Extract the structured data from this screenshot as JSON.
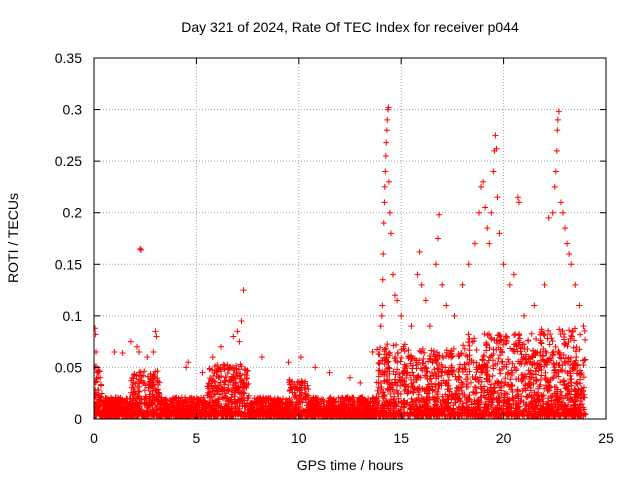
{
  "chart_data": {
    "type": "scatter",
    "title": "Day 321 of 2024, Rate Of TEC Index for receiver p044",
    "xlabel": "GPS time / hours",
    "ylabel": "ROTI / TECUs",
    "xlim": [
      0,
      25
    ],
    "ylim": [
      0,
      0.35
    ],
    "x_ticks": [
      0,
      5,
      10,
      15,
      20,
      25
    ],
    "x_tick_labels": [
      "0",
      "5",
      "10",
      "15",
      "20",
      "25"
    ],
    "y_ticks": [
      0,
      0.05,
      0.1,
      0.15,
      0.2,
      0.25,
      0.3,
      0.35
    ],
    "y_tick_labels": [
      "0",
      "0.05",
      "0.1",
      "0.15",
      "0.2",
      "0.25",
      "0.3",
      "0.35"
    ],
    "grid": true,
    "marker": "+",
    "series_color": "#ff0000",
    "series": [
      {
        "name": "ROTI",
        "points": [
          [
            0.05,
            0.088
          ],
          [
            0.08,
            0.082
          ],
          [
            0.1,
            0.065
          ],
          [
            0.15,
            0.045
          ],
          [
            0.3,
            0.04
          ],
          [
            1.0,
            0.065
          ],
          [
            1.4,
            0.064
          ],
          [
            1.8,
            0.075
          ],
          [
            2.1,
            0.07
          ],
          [
            2.2,
            0.065
          ],
          [
            2.25,
            0.165
          ],
          [
            2.3,
            0.164
          ],
          [
            2.6,
            0.06
          ],
          [
            2.9,
            0.065
          ],
          [
            3.0,
            0.085
          ],
          [
            3.05,
            0.08
          ],
          [
            4.5,
            0.05
          ],
          [
            4.6,
            0.055
          ],
          [
            5.3,
            0.045
          ],
          [
            5.8,
            0.06
          ],
          [
            6.2,
            0.07
          ],
          [
            6.8,
            0.08
          ],
          [
            7.0,
            0.085
          ],
          [
            7.1,
            0.075
          ],
          [
            7.2,
            0.095
          ],
          [
            7.3,
            0.125
          ],
          [
            8.2,
            0.06
          ],
          [
            9.5,
            0.055
          ],
          [
            10.1,
            0.06
          ],
          [
            10.8,
            0.05
          ],
          [
            11.5,
            0.045
          ],
          [
            12.5,
            0.04
          ],
          [
            13.0,
            0.035
          ],
          [
            13.6,
            0.065
          ],
          [
            14.0,
            0.09
          ],
          [
            14.05,
            0.1
          ],
          [
            14.08,
            0.11
          ],
          [
            14.1,
            0.135
          ],
          [
            14.12,
            0.16
          ],
          [
            14.15,
            0.19
          ],
          [
            14.18,
            0.21
          ],
          [
            14.2,
            0.225
          ],
          [
            14.22,
            0.24
          ],
          [
            14.25,
            0.255
          ],
          [
            14.27,
            0.268
          ],
          [
            14.3,
            0.28
          ],
          [
            14.32,
            0.29
          ],
          [
            14.35,
            0.3
          ],
          [
            14.38,
            0.302
          ],
          [
            14.4,
            0.23
          ],
          [
            14.45,
            0.2
          ],
          [
            14.5,
            0.18
          ],
          [
            14.6,
            0.14
          ],
          [
            14.7,
            0.12
          ],
          [
            14.8,
            0.115
          ],
          [
            15.0,
            0.1
          ],
          [
            15.5,
            0.09
          ],
          [
            15.8,
            0.14
          ],
          [
            15.9,
            0.162
          ],
          [
            16.0,
            0.13
          ],
          [
            16.2,
            0.115
          ],
          [
            16.4,
            0.09
          ],
          [
            16.7,
            0.15
          ],
          [
            16.8,
            0.175
          ],
          [
            16.85,
            0.198
          ],
          [
            17.0,
            0.13
          ],
          [
            17.2,
            0.11
          ],
          [
            17.6,
            0.1
          ],
          [
            18.0,
            0.13
          ],
          [
            18.3,
            0.15
          ],
          [
            18.6,
            0.17
          ],
          [
            18.8,
            0.2
          ],
          [
            18.9,
            0.225
          ],
          [
            19.0,
            0.23
          ],
          [
            19.1,
            0.205
          ],
          [
            19.2,
            0.185
          ],
          [
            19.3,
            0.17
          ],
          [
            19.4,
            0.2
          ],
          [
            19.5,
            0.24
          ],
          [
            19.55,
            0.26
          ],
          [
            19.6,
            0.275
          ],
          [
            19.65,
            0.262
          ],
          [
            19.7,
            0.215
          ],
          [
            19.8,
            0.18
          ],
          [
            20.0,
            0.15
          ],
          [
            20.3,
            0.13
          ],
          [
            20.5,
            0.14
          ],
          [
            20.7,
            0.215
          ],
          [
            20.75,
            0.21
          ],
          [
            21.0,
            0.1
          ],
          [
            21.5,
            0.11
          ],
          [
            22.0,
            0.13
          ],
          [
            22.2,
            0.195
          ],
          [
            22.4,
            0.2
          ],
          [
            22.5,
            0.225
          ],
          [
            22.55,
            0.24
          ],
          [
            22.6,
            0.26
          ],
          [
            22.62,
            0.28
          ],
          [
            22.65,
            0.29
          ],
          [
            22.7,
            0.298
          ],
          [
            22.8,
            0.21
          ],
          [
            22.9,
            0.2
          ],
          [
            23.0,
            0.185
          ],
          [
            23.1,
            0.17
          ],
          [
            23.2,
            0.16
          ],
          [
            23.3,
            0.15
          ],
          [
            23.5,
            0.13
          ],
          [
            23.7,
            0.11
          ],
          [
            23.9,
            0.09
          ]
        ]
      }
    ]
  }
}
